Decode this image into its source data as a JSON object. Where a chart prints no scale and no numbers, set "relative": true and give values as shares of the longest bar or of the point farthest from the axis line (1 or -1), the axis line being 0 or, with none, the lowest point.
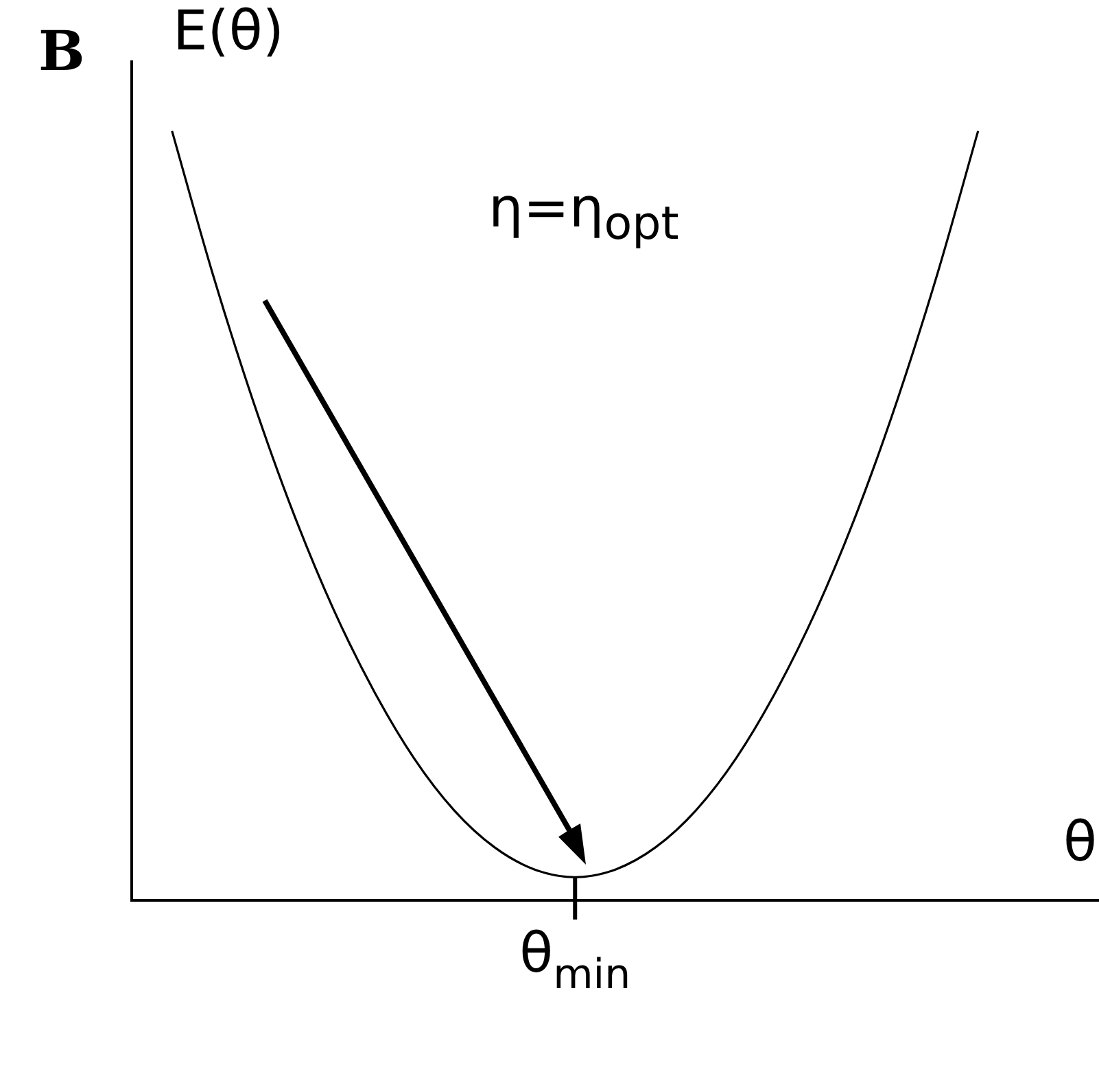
{
  "chart_data": {
    "type": "line",
    "relative": true,
    "xlabel": "θ",
    "ylabel": "E(θ)",
    "annotations": [
      "B",
      "η=η$_{opt}$",
      "θ$_{min}$"
    ],
    "categories": [
      null,
      null,
      null,
      null,
      null,
      null,
      null,
      null,
      null,
      null,
      null,
      null,
      null,
      null,
      null,
      null,
      null,
      null,
      null,
      null,
      null,
      null,
      null,
      null,
      null
    ],
    "series": [
      {
        "color": "#000000",
        "values": [
          null,
          1,
          0.816,
          0.651,
          0.505,
          0.379,
          0.273,
          0.185,
          0.117,
          0.069,
          0.04,
          0.03,
          0.04,
          0.069,
          0.117,
          0.185,
          0.273,
          0.379,
          0.505,
          0.651,
          0.816,
          1,
          null,
          null,
          null
        ]
      }
    ],
    "marker": "none",
    "line_style": "solid",
    "grid": false,
    "legend": false
  }
}
